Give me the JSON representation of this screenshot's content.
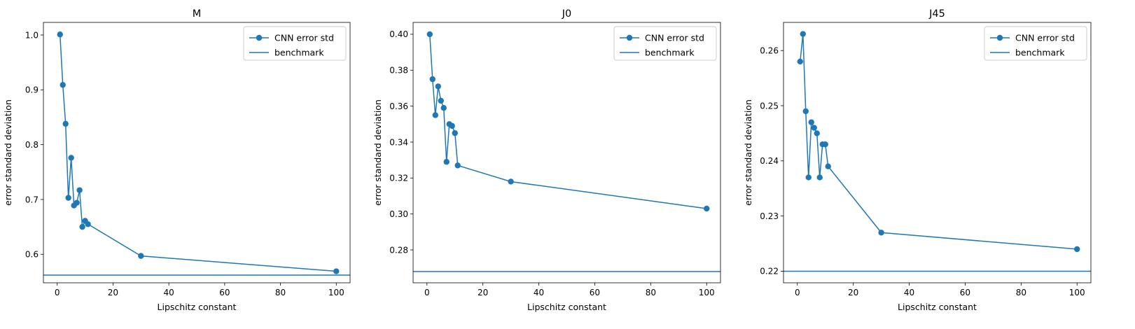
{
  "chart_data": [
    {
      "type": "line",
      "title": "M",
      "xlabel": "Lipschitz constant",
      "ylabel": "error standard deviation",
      "xlim": [
        -4.95,
        104.95
      ],
      "ylim": [
        0.548,
        1.023
      ],
      "xticks": [
        0,
        20,
        40,
        60,
        80,
        100
      ],
      "xtick_labels": [
        "0",
        "20",
        "40",
        "60",
        "80",
        "100"
      ],
      "yticks": [
        0.6,
        0.7,
        0.8,
        0.9,
        1.0
      ],
      "ytick_labels": [
        "0.6",
        "0.7",
        "0.8",
        "0.9",
        "1.0"
      ],
      "legend_position": "top-right",
      "series": [
        {
          "name": "CNN error std",
          "marker": "circle",
          "color": "#1f77b4",
          "x": [
            1,
            2,
            3,
            4,
            5,
            6,
            7,
            8,
            9,
            10,
            11,
            30,
            100
          ],
          "y": [
            1.001,
            0.909,
            0.838,
            0.703,
            0.776,
            0.689,
            0.694,
            0.717,
            0.65,
            0.661,
            0.655,
            0.597,
            0.569
          ]
        },
        {
          "name": "benchmark",
          "kind": "hline",
          "color": "#1f77b4",
          "y": 0.562
        }
      ]
    },
    {
      "type": "line",
      "title": "J0",
      "xlabel": "Lipschitz constant",
      "ylabel": "error standard deviation",
      "xlim": [
        -4.95,
        104.95
      ],
      "ylim": [
        0.2617,
        0.4066
      ],
      "xticks": [
        0,
        20,
        40,
        60,
        80,
        100
      ],
      "xtick_labels": [
        "0",
        "20",
        "40",
        "60",
        "80",
        "100"
      ],
      "yticks": [
        0.28,
        0.3,
        0.32,
        0.34,
        0.36,
        0.38,
        0.4
      ],
      "ytick_labels": [
        "0.28",
        "0.30",
        "0.32",
        "0.34",
        "0.36",
        "0.38",
        "0.40"
      ],
      "legend_position": "top-right",
      "series": [
        {
          "name": "CNN error std",
          "marker": "circle",
          "color": "#1f77b4",
          "x": [
            1,
            2,
            3,
            4,
            5,
            6,
            7,
            8,
            9,
            10,
            11,
            30,
            100
          ],
          "y": [
            0.4,
            0.375,
            0.355,
            0.371,
            0.363,
            0.359,
            0.329,
            0.35,
            0.349,
            0.345,
            0.327,
            0.318,
            0.303
          ]
        },
        {
          "name": "benchmark",
          "kind": "hline",
          "color": "#1f77b4",
          "y": 0.268
        }
      ]
    },
    {
      "type": "line",
      "title": "J45",
      "xlabel": "Lipschitz constant",
      "ylabel": "error standard deviation",
      "xlim": [
        -4.95,
        104.95
      ],
      "ylim": [
        0.2179,
        0.2651
      ],
      "xticks": [
        0,
        20,
        40,
        60,
        80,
        100
      ],
      "xtick_labels": [
        "0",
        "20",
        "40",
        "60",
        "80",
        "100"
      ],
      "yticks": [
        0.22,
        0.23,
        0.24,
        0.25,
        0.26
      ],
      "ytick_labels": [
        "0.22",
        "0.23",
        "0.24",
        "0.25",
        "0.26"
      ],
      "legend_position": "top-right",
      "series": [
        {
          "name": "CNN error std",
          "marker": "circle",
          "color": "#1f77b4",
          "x": [
            1,
            2,
            3,
            4,
            5,
            6,
            7,
            8,
            9,
            10,
            11,
            30,
            100
          ],
          "y": [
            0.258,
            0.263,
            0.249,
            0.237,
            0.247,
            0.246,
            0.245,
            0.237,
            0.243,
            0.243,
            0.239,
            0.227,
            0.224
          ]
        },
        {
          "name": "benchmark",
          "kind": "hline",
          "color": "#1f77b4",
          "y": 0.22
        }
      ]
    }
  ]
}
